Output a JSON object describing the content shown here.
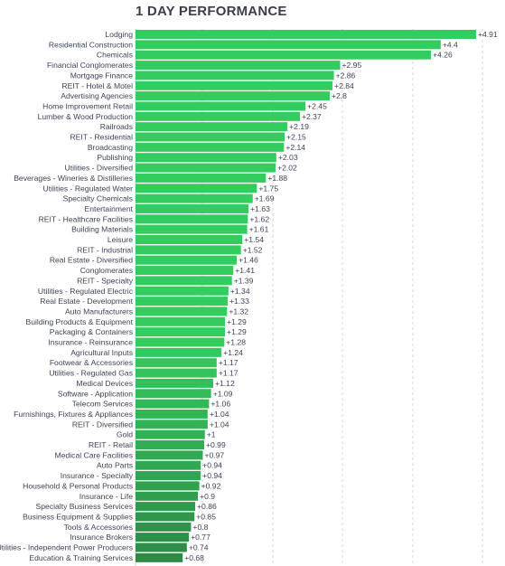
{
  "chart_data": {
    "type": "bar",
    "orientation": "horizontal",
    "title": "1 DAY PERFORMANCE",
    "xlabel": "",
    "ylabel": "",
    "grid": true,
    "value_prefix": "+",
    "categories": [
      "Lodging",
      "Residential Construction",
      "Chemicals",
      "Financial Conglomerates",
      "Mortgage Finance",
      "REIT - Hotel & Motel",
      "Advertising Agencies",
      "Home Improvement Retail",
      "Lumber & Wood Production",
      "Railroads",
      "REIT - Residential",
      "Broadcasting",
      "Publishing",
      "Utilities - Diversified",
      "Beverages - Wineries & Distilleries",
      "Utilities - Regulated Water",
      "Specialty Chemicals",
      "Entertainment",
      "REIT - Healthcare Facilities",
      "Building Materials",
      "Leisure",
      "REIT - Industrial",
      "Real Estate - Diversified",
      "Conglomerates",
      "REIT - Specialty",
      "Utilities - Regulated Electric",
      "Real Estate - Development",
      "Auto Manufacturers",
      "Building Products & Equipment",
      "Packaging & Containers",
      "Insurance - Reinsurance",
      "Agricultural Inputs",
      "Footwear & Accessories",
      "Utilities - Regulated Gas",
      "Medical Devices",
      "Software - Application",
      "Telecom Services",
      "Furnishings, Fixtures & Appliances",
      "REIT - Diversified",
      "Gold",
      "REIT - Retail",
      "Medical Care Facilities",
      "Auto Parts",
      "Insurance - Specialty",
      "Household & Personal Products",
      "Insurance - Life",
      "Specialty Business Services",
      "Business Equipment & Supplies",
      "Tools & Accessories",
      "Insurance Brokers",
      "Utilities - Independent Power Producers",
      "Education & Training Services"
    ],
    "values": [
      4.91,
      4.4,
      4.26,
      2.95,
      2.86,
      2.84,
      2.8,
      2.45,
      2.37,
      2.19,
      2.15,
      2.14,
      2.03,
      2.02,
      1.88,
      1.75,
      1.69,
      1.63,
      1.62,
      1.61,
      1.54,
      1.52,
      1.46,
      1.41,
      1.39,
      1.34,
      1.33,
      1.32,
      1.29,
      1.29,
      1.28,
      1.24,
      1.17,
      1.17,
      1.12,
      1.09,
      1.06,
      1.04,
      1.04,
      1,
      0.99,
      0.97,
      0.94,
      0.94,
      0.92,
      0.9,
      0.86,
      0.85,
      0.8,
      0.77,
      0.74,
      0.68
    ],
    "xlim": [
      0,
      4.91
    ],
    "colors": {
      "bar_bright": "#33cc5e",
      "bar_dark": "#2e8b47",
      "grid": "#d7d7dd",
      "text": "#3e4257"
    }
  }
}
